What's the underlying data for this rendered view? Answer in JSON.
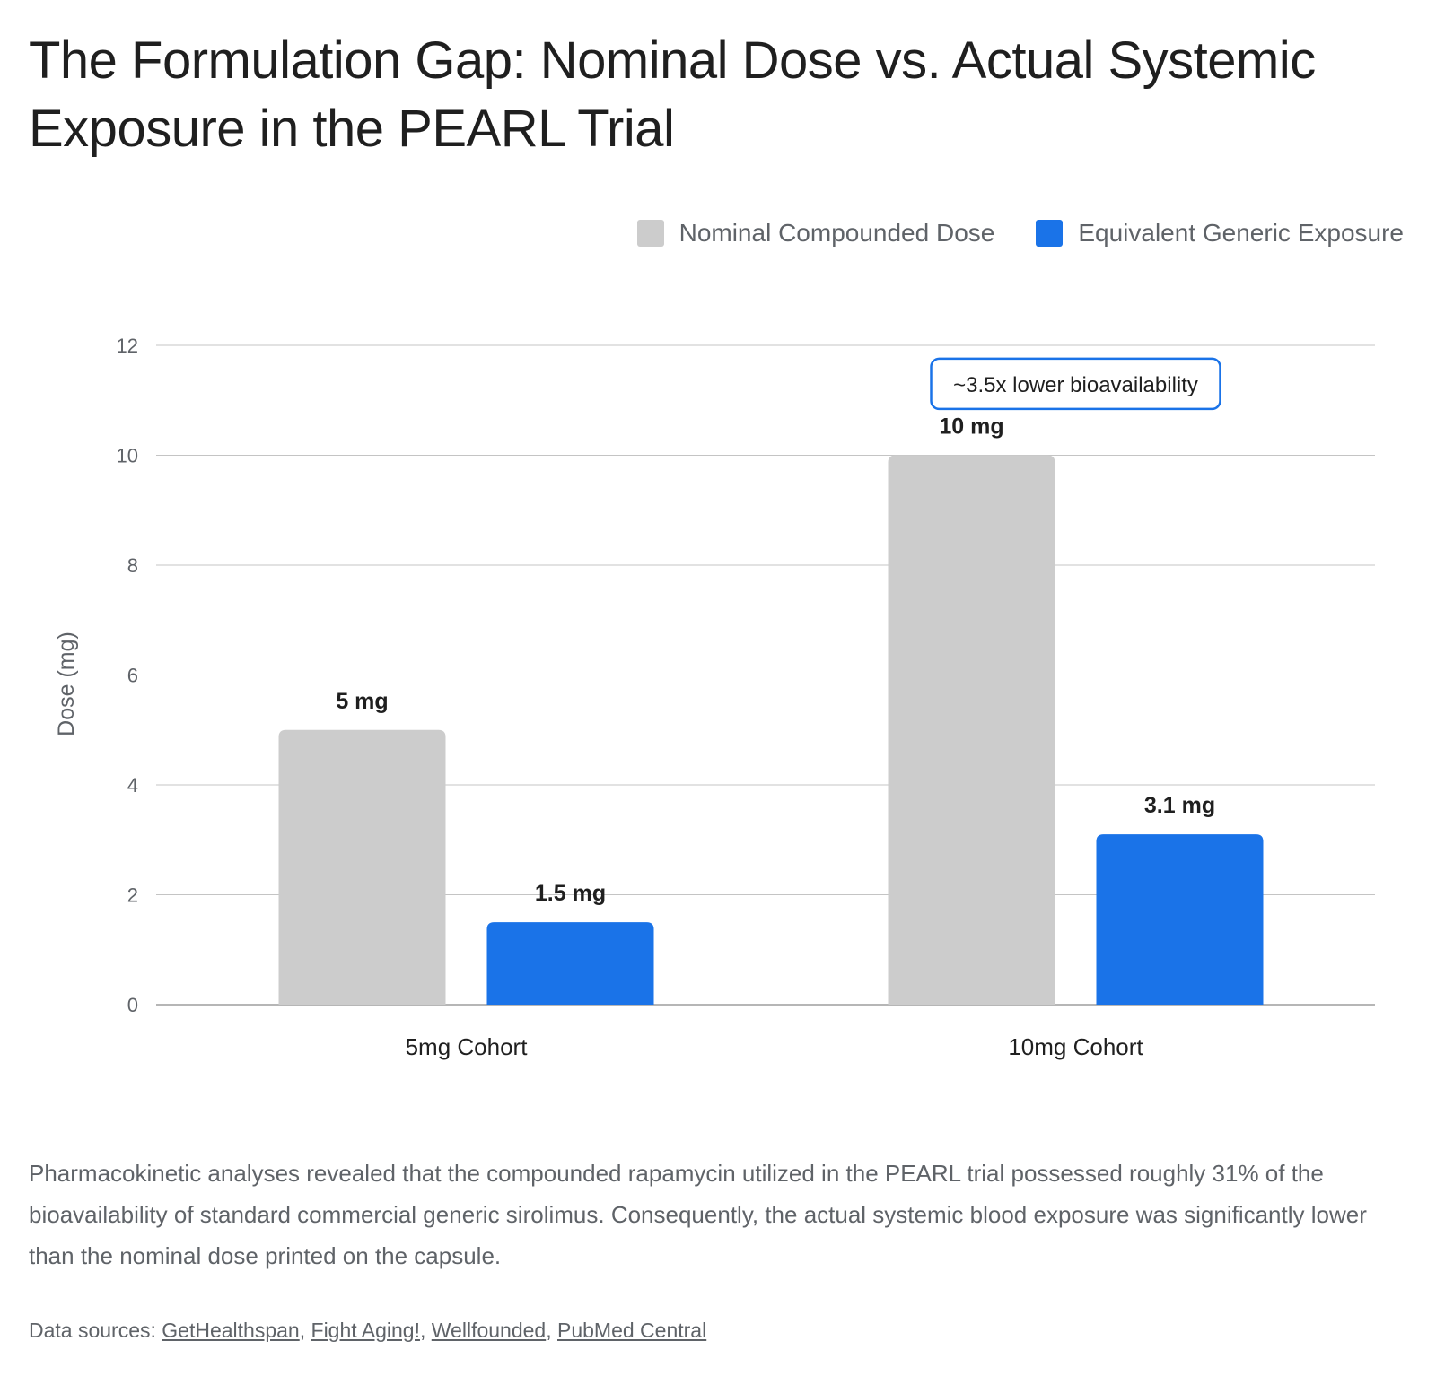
{
  "title": "The Formulation Gap: Nominal Dose vs. Actual Systemic Exposure in the PEARL Trial",
  "colors": {
    "nominal": "#cccccc",
    "generic": "#1a73e8",
    "grid": "#c4c4c4",
    "annotation_border": "#1a73e8"
  },
  "chart_data": {
    "type": "bar",
    "categories": [
      "5mg Cohort",
      "10mg Cohort"
    ],
    "series": [
      {
        "name": "Nominal Compounded Dose",
        "values": [
          5,
          10
        ],
        "labels": [
          "5 mg",
          "10 mg"
        ]
      },
      {
        "name": "Equivalent Generic Exposure",
        "values": [
          1.5,
          3.1
        ],
        "labels": [
          "1.5 mg",
          "3.1 mg"
        ]
      }
    ],
    "ylabel": "Dose (mg)",
    "xlabel": "",
    "ylim": [
      0,
      12
    ],
    "yticks": [
      0,
      2,
      4,
      6,
      8,
      10,
      12
    ],
    "grid": true,
    "legend_position": "top-right",
    "annotation": {
      "text": "~3.5x lower bioavailability",
      "category": "10mg Cohort",
      "value": 11.3
    }
  },
  "caption": "Pharmacokinetic analyses revealed that the compounded rapamycin utilized in the PEARL trial possessed roughly 31% of the bioavailability of standard commercial generic sirolimus. Consequently, the actual systemic blood exposure was significantly lower than the nominal dose printed on the capsule.",
  "sources": {
    "prefix": "Data sources: ",
    "links": [
      "GetHealthspan",
      "Fight Aging!",
      "Wellfounded",
      "PubMed Central"
    ]
  }
}
